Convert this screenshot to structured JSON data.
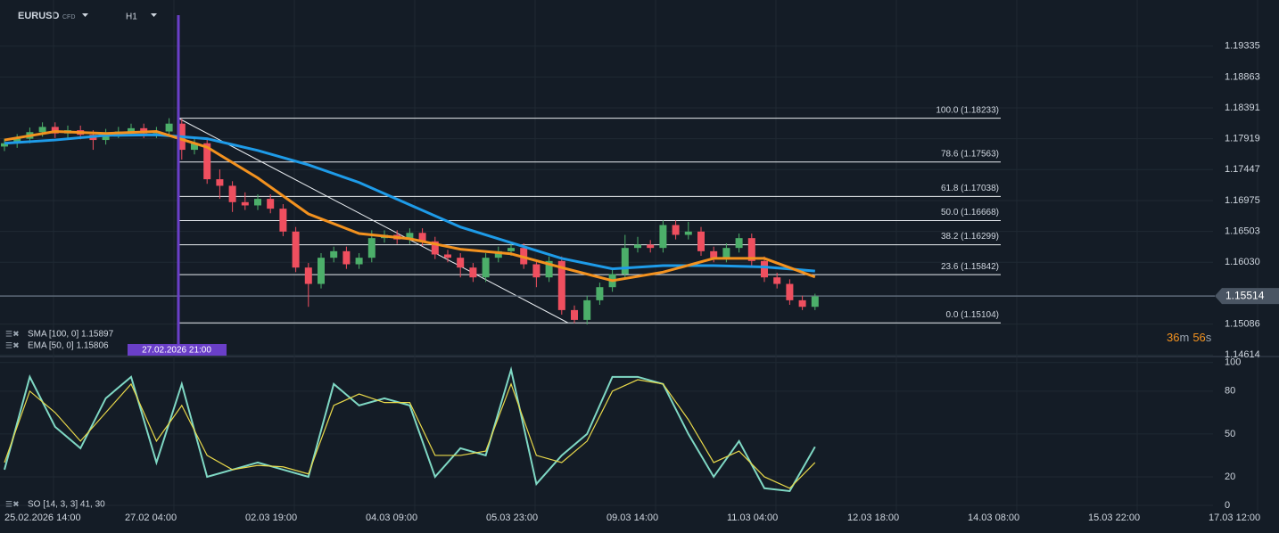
{
  "chart_data": {
    "type": "candlestick",
    "symbol": "EURUSD",
    "instrument_type": "CFD",
    "timeframe": "H1",
    "up_color": "#4caf6a",
    "down_color": "#ef4f5f",
    "open": [
      1.178,
      1.1785,
      1.1792,
      1.1802,
      1.181,
      1.18,
      1.1805,
      1.1798,
      1.179,
      1.18,
      1.1803,
      1.1808,
      1.18,
      1.1803,
      1.1815,
      1.1775,
      1.1785,
      1.173,
      1.172,
      1.1695,
      1.169,
      1.17,
      1.1685,
      1.165,
      1.1595,
      1.157,
      1.161,
      1.162,
      1.16,
      1.161,
      1.164,
      1.1645,
      1.1638,
      1.1648,
      1.1635,
      1.1615,
      1.161,
      1.1595,
      1.158,
      1.161,
      1.162,
      1.1625,
      1.16,
      1.158,
      1.1605,
      1.153,
      1.1515,
      1.1545,
      1.1565,
      1.1585,
      1.1625,
      1.163,
      1.1625,
      1.166,
      1.1645,
      1.165,
      1.162,
      1.161,
      1.1625,
      1.164,
      1.1605,
      1.158,
      1.157,
      1.1545,
      1.1535
    ],
    "high": [
      1.1792,
      1.1799,
      1.1809,
      1.1817,
      1.1817,
      1.1812,
      1.1812,
      1.1805,
      1.1807,
      1.181,
      1.1815,
      1.1815,
      1.181,
      1.18233,
      1.1822,
      1.1795,
      1.1792,
      1.1745,
      1.1727,
      1.171,
      1.1707,
      1.1707,
      1.1692,
      1.1657,
      1.1602,
      1.1617,
      1.1627,
      1.1627,
      1.1617,
      1.1652,
      1.1652,
      1.1652,
      1.1655,
      1.1655,
      1.1642,
      1.1622,
      1.1617,
      1.1602,
      1.1617,
      1.1627,
      1.1632,
      1.1632,
      1.1607,
      1.1612,
      1.1612,
      1.1537,
      1.1552,
      1.1572,
      1.1592,
      1.1645,
      1.1642,
      1.1637,
      1.1667,
      1.1667,
      1.1665,
      1.1657,
      1.1627,
      1.1632,
      1.1647,
      1.1647,
      1.1612,
      1.1587,
      1.1577,
      1.1552,
      1.1555
    ],
    "low": [
      1.1773,
      1.1778,
      1.1785,
      1.1795,
      1.1793,
      1.1793,
      1.1791,
      1.1775,
      1.1783,
      1.1793,
      1.1796,
      1.1793,
      1.1793,
      1.1796,
      1.176,
      1.1768,
      1.1723,
      1.17,
      1.168,
      1.1683,
      1.1683,
      1.1678,
      1.1643,
      1.1588,
      1.1535,
      1.1563,
      1.1603,
      1.1593,
      1.1593,
      1.1603,
      1.1633,
      1.1631,
      1.1631,
      1.1628,
      1.1608,
      1.1603,
      1.158,
      1.1573,
      1.1573,
      1.1603,
      1.1613,
      1.1593,
      1.1565,
      1.1573,
      1.1523,
      1.151,
      1.1508,
      1.1538,
      1.1558,
      1.1578,
      1.1618,
      1.1618,
      1.1618,
      1.1638,
      1.1638,
      1.1613,
      1.1603,
      1.1603,
      1.1618,
      1.1598,
      1.1573,
      1.1563,
      1.1538,
      1.153,
      1.153
    ],
    "close": [
      1.1785,
      1.1792,
      1.1802,
      1.181,
      1.18,
      1.1805,
      1.1798,
      1.179,
      1.18,
      1.1803,
      1.1808,
      1.18,
      1.1803,
      1.1815,
      1.1775,
      1.1785,
      1.173,
      1.172,
      1.1695,
      1.169,
      1.17,
      1.1685,
      1.165,
      1.1595,
      1.157,
      1.161,
      1.162,
      1.16,
      1.161,
      1.164,
      1.1645,
      1.1638,
      1.1648,
      1.1635,
      1.1615,
      1.161,
      1.1595,
      1.158,
      1.161,
      1.162,
      1.1625,
      1.16,
      1.158,
      1.1605,
      1.153,
      1.1515,
      1.1545,
      1.1565,
      1.1585,
      1.1625,
      1.163,
      1.1625,
      1.166,
      1.1645,
      1.165,
      1.162,
      1.161,
      1.1625,
      1.164,
      1.1605,
      1.158,
      1.157,
      1.1545,
      1.1535,
      1.1551
    ],
    "ylim": [
      1.1459,
      1.2004
    ],
    "yticks": [
      {
        "value": 1.19335,
        "label": "1.19335"
      },
      {
        "value": 1.18863,
        "label": "1.18863"
      },
      {
        "value": 1.18391,
        "label": "1.18391"
      },
      {
        "value": 1.17919,
        "label": "1.17919"
      },
      {
        "value": 1.17447,
        "label": "1.17447"
      },
      {
        "value": 1.16975,
        "label": "1.16975"
      },
      {
        "value": 1.16503,
        "label": "1.16503"
      },
      {
        "value": 1.1603,
        "label": "1.16030"
      },
      {
        "value": 1.15086,
        "label": "1.15086"
      },
      {
        "value": 1.14614,
        "label": "1.14614"
      }
    ],
    "current_price": 1.15514,
    "countdown": [
      "36",
      "m",
      "56",
      "s"
    ],
    "time_labels": [
      "25.02.2026 14:00",
      "27.02 04:00",
      "02.03 19:00",
      "04.03 09:00",
      "05.03 23:00",
      "09.03 14:00",
      "11.03 04:00",
      "12.03 18:00",
      "14.03 08:00",
      "15.03 22:00",
      "17.03 12:00"
    ],
    "marker_label": "27.02.2026 21:00",
    "fib_levels": [
      {
        "value": 1.18233,
        "label": "100.0 (1.18233)"
      },
      {
        "value": 1.17563,
        "label": "78.6 (1.17563)"
      },
      {
        "value": 1.17038,
        "label": "61.8 (1.17038)"
      },
      {
        "value": 1.16668,
        "label": "50.0 (1.16668)"
      },
      {
        "value": 1.16299,
        "label": "38.2 (1.16299)"
      },
      {
        "value": 1.15842,
        "label": "23.6 (1.15842)"
      },
      {
        "value": 1.15104,
        "label": "0.0 (1.15104)"
      }
    ],
    "series": [
      {
        "name": "SMA [100, 0] 1.15897",
        "color": "#1e9be8",
        "values": [
          1.1785,
          1.179,
          1.1797,
          1.1798,
          1.1792,
          1.1774,
          1.1752,
          1.1725,
          1.1691,
          1.1657,
          1.1633,
          1.1609,
          1.1593,
          1.1598,
          1.1598,
          1.1596,
          1.15897
        ]
      },
      {
        "name": "EMA [50, 0] 1.15806",
        "color": "#f3921f",
        "values": [
          1.179,
          1.1803,
          1.18,
          1.1803,
          1.1779,
          1.1732,
          1.1677,
          1.1647,
          1.1639,
          1.1623,
          1.1616,
          1.1595,
          1.1575,
          1.1588,
          1.1609,
          1.1609,
          1.15806
        ]
      }
    ],
    "oscillator": {
      "name": "SO [14, 3, 3] 41, 30",
      "ylim": [
        -5,
        103
      ],
      "yticks": [
        100,
        80,
        50,
        20,
        0
      ],
      "series": [
        {
          "color": "#7fd8c4",
          "values": [
            25,
            90,
            55,
            40,
            75,
            90,
            30,
            85,
            20,
            25,
            30,
            25,
            20,
            85,
            70,
            75,
            70,
            20,
            40,
            35,
            95,
            15,
            35,
            50,
            90,
            90,
            85,
            50,
            20,
            45,
            12,
            10,
            41
          ]
        },
        {
          "color": "#e8d84a",
          "values": [
            30,
            80,
            65,
            45,
            65,
            85,
            45,
            70,
            35,
            25,
            28,
            27,
            22,
            70,
            78,
            72,
            72,
            35,
            35,
            38,
            85,
            35,
            30,
            45,
            80,
            88,
            85,
            60,
            30,
            38,
            20,
            12,
            30
          ]
        }
      ]
    }
  }
}
